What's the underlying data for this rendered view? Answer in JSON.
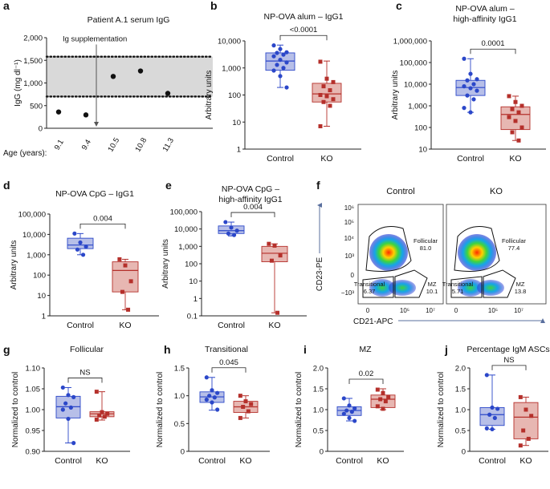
{
  "figure": {
    "title": "Patient and mouse IgG and B cell panels"
  },
  "colors": {
    "blue": "#2b47c9",
    "blue_fill": "#b7bfe8",
    "red": "#b5302b",
    "red_fill": "#e7b7b2",
    "band": "#d9d9d9",
    "axis": "#222222",
    "text": "#111111"
  },
  "chart_data": [
    {
      "id": "a",
      "panel_label": "a",
      "type": "scatter",
      "title": "Patient A.1 serum IgG",
      "ylabel": "IgG (mg dl⁻¹)",
      "xlabel": "Age (years):",
      "ylim": [
        0,
        2000
      ],
      "yticks": [
        "0",
        "500",
        "1,000",
        "1,500",
        "2,000"
      ],
      "categories": [
        "9.1",
        "9.4",
        "10.5",
        "10.8",
        "11.3"
      ],
      "values": [
        360,
        295,
        1145,
        1265,
        770
      ],
      "reference_band": [
        700,
        1580
      ],
      "annotation": "Ig supplementation",
      "annotation_after": "9.4"
    },
    {
      "id": "b",
      "panel_label": "b",
      "type": "box",
      "scale": "log",
      "title": "NP-OVA alum – IgG1",
      "title2": "",
      "ylabel": "Arbitrary units",
      "ylim": [
        1,
        10000
      ],
      "yticks": [
        "1",
        "10",
        "100",
        "1,000",
        "10,000"
      ],
      "pvalue": "<0.0001",
      "series": [
        {
          "name": "Control",
          "box": {
            "min": 190,
            "q1": 820,
            "median": 1800,
            "q3": 3600,
            "max": 7000
          },
          "points": [
            6800,
            5000,
            3800,
            3600,
            3100,
            2700,
            2000,
            1600,
            1300,
            1000,
            800,
            500,
            190
          ]
        },
        {
          "name": "KO",
          "box": {
            "min": 7,
            "q1": 55,
            "median": 110,
            "q3": 270,
            "max": 1800
          },
          "points": [
            1700,
            400,
            300,
            210,
            150,
            100,
            90,
            70,
            55,
            40,
            7
          ]
        }
      ]
    },
    {
      "id": "c",
      "panel_label": "c",
      "type": "box",
      "scale": "log",
      "title": "NP-OVA alum –",
      "title2": "high-affinity IgG1",
      "ylabel": "Arbitrary units",
      "ylim": [
        10,
        1000000
      ],
      "yticks": [
        "10",
        "100",
        "1,000",
        "10,000",
        "100,000",
        "1,000,000"
      ],
      "pvalue": "0.0001",
      "series": [
        {
          "name": "Control",
          "box": {
            "min": 500,
            "q1": 3000,
            "median": 7000,
            "q3": 15000,
            "max": 150000
          },
          "points": [
            150000,
            30000,
            17000,
            15000,
            10000,
            8000,
            6500,
            5000,
            3000,
            2000,
            800,
            500
          ]
        },
        {
          "name": "KO",
          "box": {
            "min": 25,
            "q1": 80,
            "median": 400,
            "q3": 900,
            "max": 2800
          },
          "points": [
            2800,
            1500,
            1000,
            700,
            500,
            300,
            200,
            100,
            60,
            25
          ]
        }
      ]
    },
    {
      "id": "d",
      "panel_label": "d",
      "type": "box",
      "scale": "log",
      "title": "NP-OVA CpG – IgG1",
      "title2": "",
      "ylabel": "Arbitrary units",
      "ylim": [
        1,
        100000
      ],
      "yticks": [
        "1",
        "10",
        "100",
        "1,000",
        "10,000",
        "100,000"
      ],
      "pvalue": "0.004",
      "series": [
        {
          "name": "Control",
          "box": {
            "min": 1000,
            "q1": 2000,
            "median": 3000,
            "q3": 6500,
            "max": 11000
          },
          "points": [
            11000,
            4000,
            2500,
            1800,
            1000
          ]
        },
        {
          "name": "KO",
          "box": {
            "min": 2,
            "q1": 15,
            "median": 170,
            "q3": 450,
            "max": 600
          },
          "points": [
            600,
            300,
            50,
            15,
            2
          ]
        }
      ]
    },
    {
      "id": "e",
      "panel_label": "e",
      "type": "box",
      "scale": "log",
      "title": "NP-OVA CpG –",
      "title2": "high-affinity IgG1",
      "ylabel": "Arbitrary units",
      "ylim": [
        0.1,
        100000
      ],
      "yticks": [
        "0.1",
        "1",
        "10",
        "100",
        "1,000",
        "10,000",
        "100,000"
      ],
      "pvalue": "0.004",
      "series": [
        {
          "name": "Control",
          "box": {
            "min": 4000,
            "q1": 5500,
            "median": 8000,
            "q3": 15000,
            "max": 25000
          },
          "points": [
            25000,
            12000,
            8000,
            5500,
            4500
          ]
        },
        {
          "name": "KO",
          "box": {
            "min": 0.15,
            "q1": 130,
            "median": 400,
            "q3": 1000,
            "max": 1400
          },
          "points": [
            1400,
            1100,
            300,
            150,
            0.15
          ]
        }
      ]
    },
    {
      "id": "g",
      "panel_label": "g",
      "type": "box",
      "scale": "linear",
      "title": "Follicular",
      "title2": "",
      "ylabel": "Normalized to control",
      "ylim": [
        0.9,
        1.1
      ],
      "yticks": [
        "0.90",
        "0.95",
        "1.00",
        "1.05",
        "1.10"
      ],
      "pvalue": "NS",
      "series": [
        {
          "name": "Control",
          "box": {
            "min": 0.92,
            "q1": 0.98,
            "median": 1.007,
            "q3": 1.032,
            "max": 1.053
          },
          "points": [
            1.053,
            1.035,
            1.03,
            1.015,
            1.005,
            1.0,
            0.978,
            0.92
          ]
        },
        {
          "name": "KO",
          "box": {
            "min": 0.975,
            "q1": 0.983,
            "median": 0.99,
            "q3": 0.995,
            "max": 1.043
          },
          "points": [
            1.043,
            0.994,
            0.99,
            0.986,
            0.983,
            0.976
          ]
        }
      ]
    },
    {
      "id": "h",
      "panel_label": "h",
      "type": "box",
      "scale": "linear",
      "title": "Transitional",
      "title2": "",
      "ylabel": "Normalized to control",
      "ylim": [
        0,
        1.5
      ],
      "yticks": [
        "0",
        "0.5",
        "1.0",
        "1.5"
      ],
      "pvalue": "0.045",
      "series": [
        {
          "name": "Control",
          "box": {
            "min": 0.74,
            "q1": 0.88,
            "median": 0.98,
            "q3": 1.07,
            "max": 1.33
          },
          "points": [
            1.33,
            1.1,
            1.05,
            1.0,
            0.97,
            0.93,
            0.88,
            0.75
          ]
        },
        {
          "name": "KO",
          "box": {
            "min": 0.6,
            "q1": 0.7,
            "median": 0.8,
            "q3": 0.9,
            "max": 1.0
          },
          "points": [
            1.0,
            0.9,
            0.85,
            0.8,
            0.72,
            0.6
          ]
        }
      ]
    },
    {
      "id": "i",
      "panel_label": "i",
      "type": "box",
      "scale": "linear",
      "title": "MZ",
      "title2": "",
      "ylabel": "Normalized to control",
      "ylim": [
        0,
        2.0
      ],
      "yticks": [
        "0",
        "0.5",
        "1.0",
        "1.5",
        "2.0"
      ],
      "pvalue": "0.02",
      "series": [
        {
          "name": "Control",
          "box": {
            "min": 0.73,
            "q1": 0.86,
            "median": 0.98,
            "q3": 1.07,
            "max": 1.27
          },
          "points": [
            1.27,
            1.1,
            1.03,
            0.98,
            0.95,
            0.9,
            0.8,
            0.73
          ]
        },
        {
          "name": "KO",
          "box": {
            "min": 1.0,
            "q1": 1.05,
            "median": 1.25,
            "q3": 1.35,
            "max": 1.5
          },
          "points": [
            1.48,
            1.4,
            1.3,
            1.25,
            1.2,
            1.08,
            1.02
          ]
        }
      ]
    },
    {
      "id": "j",
      "panel_label": "j",
      "type": "box",
      "scale": "linear",
      "title": "Percentage IgM ASCs",
      "title2": "",
      "ylabel": "Normalized to control",
      "ylim": [
        0,
        2.0
      ],
      "yticks": [
        "0",
        "0.5",
        "1.0",
        "1.5",
        "2.0"
      ],
      "pvalue": "NS",
      "series": [
        {
          "name": "Control",
          "box": {
            "min": 0.53,
            "q1": 0.62,
            "median": 0.88,
            "q3": 1.05,
            "max": 1.83
          },
          "points": [
            1.83,
            1.05,
            1.02,
            0.88,
            0.8,
            0.55,
            0.53
          ]
        },
        {
          "name": "KO",
          "box": {
            "min": 0.14,
            "q1": 0.3,
            "median": 0.82,
            "q3": 1.17,
            "max": 1.3
          },
          "points": [
            1.3,
            1.0,
            0.85,
            0.5,
            0.3,
            0.14
          ]
        }
      ]
    }
  ],
  "flow": {
    "panel_label": "f",
    "ylabel": "CD23-PE",
    "xlabel": "CD21-APC",
    "yticks": [
      "−10³",
      "0",
      "10³",
      "10⁴",
      "10⁵",
      "10⁶"
    ],
    "xticks": [
      "0",
      "10⁵",
      "10⁷"
    ],
    "plots": [
      {
        "title": "Control",
        "gates": [
          {
            "name": "Follicular",
            "value": "81.0"
          },
          {
            "name": "Transitional",
            "value": "6.37"
          },
          {
            "name": "MZ",
            "value": "10.1"
          }
        ]
      },
      {
        "title": "KO",
        "gates": [
          {
            "name": "Follicular",
            "value": "77.4"
          },
          {
            "name": "Transitional",
            "value": "5.71"
          },
          {
            "name": "MZ",
            "value": "13.8"
          }
        ]
      }
    ]
  }
}
